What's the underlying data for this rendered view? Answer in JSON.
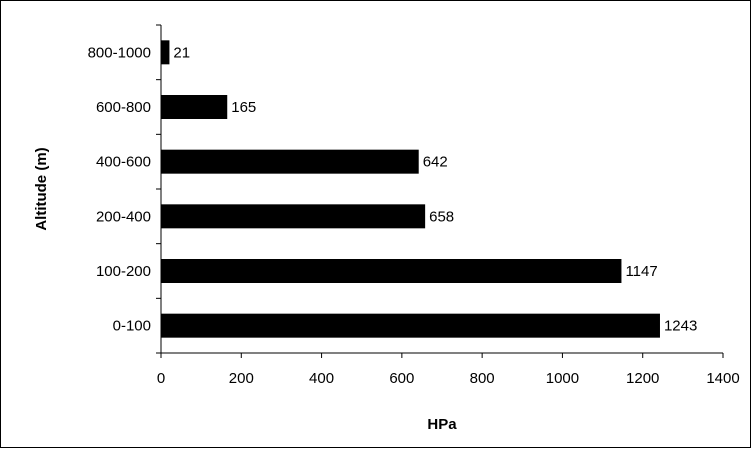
{
  "chart_data": {
    "type": "bar",
    "orientation": "horizontal",
    "categories": [
      "800-1000",
      "600-800",
      "400-600",
      "200-400",
      "100-200",
      "0-100"
    ],
    "values": [
      21,
      165,
      642,
      658,
      1147,
      1243
    ],
    "xlabel": "HPa",
    "ylabel": "Altitude (m)",
    "xlim": [
      0,
      1400
    ],
    "xticks": [
      "0",
      "200",
      "400",
      "600",
      "800",
      "1000",
      "1200",
      "1400"
    ],
    "grid": false,
    "legend": "none",
    "bar_color": "#000000"
  }
}
